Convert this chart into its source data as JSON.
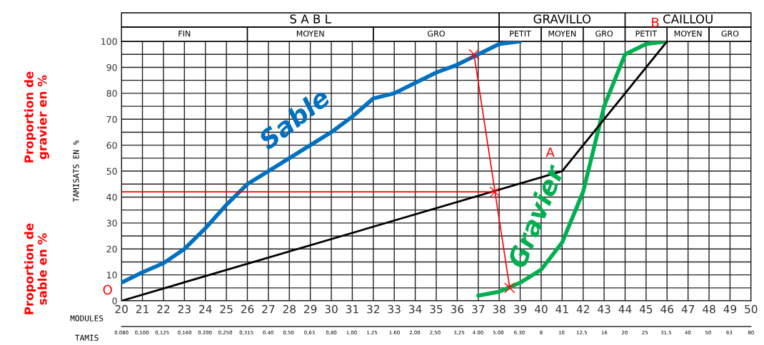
{
  "chart_data": {
    "type": "line",
    "xlabel": "MODULES",
    "x2label": "TAMIS",
    "ylabel": "TAMISATS EN %",
    "xlim": [
      20,
      50
    ],
    "ylim": [
      0,
      100
    ],
    "xticks": [
      20,
      21,
      22,
      23,
      24,
      25,
      26,
      27,
      28,
      29,
      30,
      31,
      32,
      33,
      34,
      35,
      36,
      37,
      38,
      39,
      40,
      41,
      42,
      43,
      44,
      45,
      46,
      47,
      48,
      49,
      50
    ],
    "x2lim": [
      0.08,
      80
    ],
    "log": "x2",
    "x2ticks": [
      {
        "value": 0.08,
        "label": "0.080"
      },
      {
        "value": 0.1,
        "label": "0,100"
      },
      {
        "value": 0.125,
        "label": "0,125"
      },
      {
        "value": 0.16,
        "label": "0,160"
      },
      {
        "value": 0.2,
        "label": "0.200"
      },
      {
        "value": 0.25,
        "label": "0,250"
      },
      {
        "value": 0.315,
        "label": "0,315"
      },
      {
        "value": 0.4,
        "label": "0.40"
      },
      {
        "value": 0.5,
        "label": "0,50"
      },
      {
        "value": 0.63,
        "label": "0,63"
      },
      {
        "value": 0.8,
        "label": "0,80"
      },
      {
        "value": 1,
        "label": "1,00"
      },
      {
        "value": 1.25,
        "label": "1.25"
      },
      {
        "value": 1.6,
        "label": "1.60"
      },
      {
        "value": 2,
        "label": "2,00"
      },
      {
        "value": 2.5,
        "label": "2,50"
      },
      {
        "value": 3.25,
        "label": "3,25"
      },
      {
        "value": 4,
        "label": "4.00"
      },
      {
        "value": 5,
        "label": "5.00"
      },
      {
        "value": 6.3,
        "label": "6.30"
      },
      {
        "value": 8,
        "label": "8"
      },
      {
        "value": 10,
        "label": "10"
      },
      {
        "value": 12.5,
        "label": "12,5"
      },
      {
        "value": 16,
        "label": "16"
      },
      {
        "value": 20,
        "label": "20"
      },
      {
        "value": 25,
        "label": "25"
      },
      {
        "value": 31.5,
        "label": "31,5"
      },
      {
        "value": 40,
        "label": "40"
      },
      {
        "value": 50,
        "label": "50"
      },
      {
        "value": 63,
        "label": "63"
      },
      {
        "value": 80,
        "label": "80"
      }
    ],
    "yticks": [
      0,
      {
        "value": 5,
        "label": null
      },
      10,
      {
        "value": 15,
        "label": null
      },
      20,
      {
        "value": 25,
        "label": null
      },
      30,
      {
        "value": 35,
        "label": null
      },
      40,
      {
        "value": 45,
        "label": null
      },
      50,
      {
        "value": 55,
        "label": null
      },
      60,
      {
        "value": 65,
        "label": null
      },
      70,
      {
        "value": 75,
        "label": null
      },
      80,
      {
        "value": 85,
        "label": null
      },
      90,
      {
        "value": 95,
        "label": null
      },
      100
    ],
    "grid": true,
    "series": [
      {
        "name": "Sable",
        "color": "#0070c0",
        "x": [
          20,
          21,
          22,
          23,
          24,
          25,
          26,
          27,
          28,
          29,
          30,
          31,
          32,
          33,
          34,
          35,
          36,
          37,
          38,
          39
        ],
        "values": [
          7,
          11,
          14.5,
          20,
          28,
          37,
          45,
          50,
          55,
          60,
          65,
          71,
          78,
          80,
          84,
          88,
          91,
          95,
          99,
          100
        ]
      },
      {
        "name": "Gravier",
        "color": "#00b050",
        "x": [
          37,
          38,
          39,
          40,
          41,
          42,
          43,
          44,
          45,
          46
        ],
        "values": [
          2,
          3.5,
          7,
          12,
          22.5,
          42,
          75,
          95,
          99,
          100
        ]
      },
      {
        "color": "#000000",
        "x": [
          20,
          41,
          46
        ],
        "values": [
          0,
          50,
          100
        ]
      },
      {
        "color": "#ff0000",
        "marker": "cross",
        "x": [
          36.8,
          37.8,
          38.5
        ],
        "values": [
          95,
          42,
          5
        ]
      },
      {
        "color": "#ff0000",
        "x": [
          20,
          37.8
        ],
        "values": [
          42,
          42
        ]
      }
    ],
    "annotations": [
      {
        "text": "O",
        "x": 20,
        "y": 0
      },
      {
        "text": "A",
        "x": 41,
        "y": 50
      },
      {
        "text": "B",
        "x": 46,
        "y": 100
      },
      "Proportion de\ngravier en %",
      "Proportion de\nsable en %",
      "S A B L",
      "GRAVILLO",
      "CAILLOU",
      "FIN",
      "MOYEN",
      "GRO",
      "PETIT",
      "MOYEN",
      "GRO",
      "PETIT",
      "MOYEN",
      "GRO"
    ]
  }
}
